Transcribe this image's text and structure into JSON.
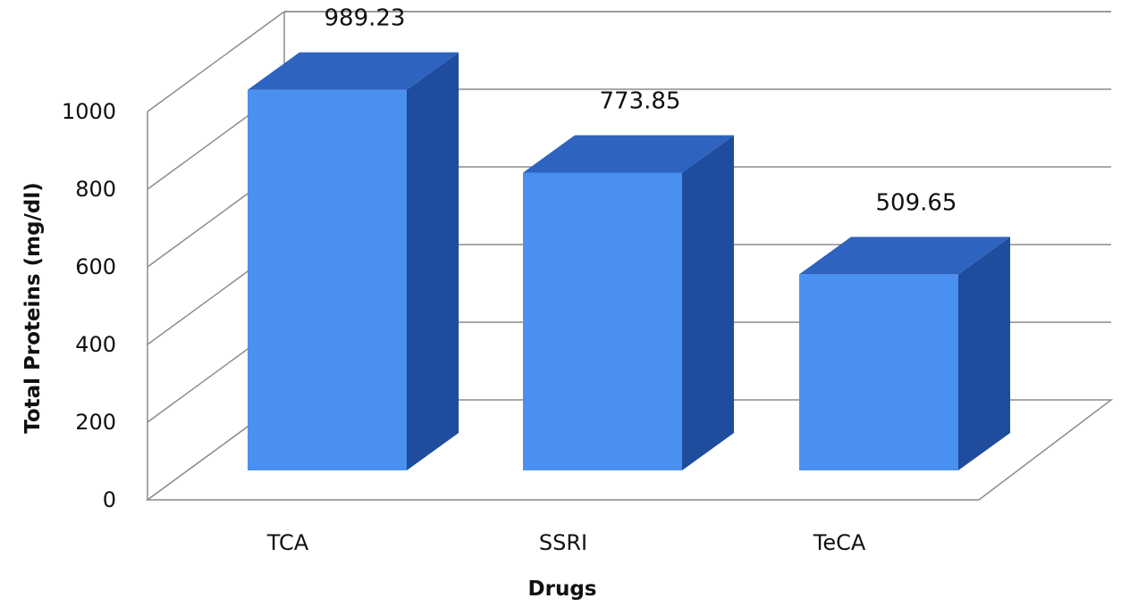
{
  "chart_data": {
    "type": "bar",
    "style": "3d-column",
    "categories": [
      "TCA",
      "SSRI",
      "TeCA"
    ],
    "values": [
      989.23,
      773.85,
      509.65
    ],
    "data_labels": [
      "989.23",
      "773.85",
      "509.65"
    ],
    "xlabel": "Drugs",
    "ylabel": "Total Proteins (mg/dl)",
    "ylim": [
      0,
      1000
    ],
    "yticks": [
      "0",
      "200",
      "400",
      "600",
      "800",
      "1000"
    ],
    "grid": true,
    "legend": "none",
    "colors": {
      "front": "#4a90f0",
      "top": "#2e63c0",
      "side": "#1f4c9c",
      "grid": "#8c8c8c"
    }
  }
}
